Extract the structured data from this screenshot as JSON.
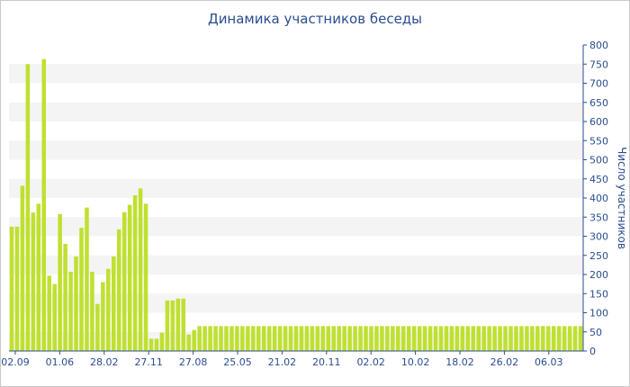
{
  "chart_data": {
    "type": "bar",
    "title": "Динамика участников беседы",
    "ylabel": "Число участников",
    "xlabel": "",
    "ylim": [
      0,
      800
    ],
    "y_ticks": [
      0,
      50,
      100,
      150,
      200,
      250,
      300,
      350,
      400,
      450,
      500,
      550,
      600,
      650,
      700,
      750,
      800
    ],
    "x_tick_labels": [
      "02.09",
      "01.06",
      "28.02",
      "27.11",
      "27.08",
      "25.05",
      "21.02",
      "20.11",
      "02.02",
      "10.02",
      "18.02",
      "26.02",
      "06.03"
    ],
    "grid": true,
    "y_axis_side": "right",
    "bar_color": "#bfe030",
    "band_color": "#f4f4f4",
    "values": [
      325,
      325,
      432,
      750,
      362,
      385,
      763,
      197,
      175,
      358,
      280,
      207,
      247,
      322,
      375,
      207,
      123,
      180,
      215,
      247,
      318,
      363,
      382,
      407,
      425,
      385,
      32,
      32,
      48,
      132,
      132,
      137,
      137,
      43,
      55,
      65,
      65,
      65,
      65,
      65,
      65,
      65,
      65,
      65,
      65,
      65,
      65,
      65,
      65,
      65,
      65,
      65,
      65,
      65,
      65,
      65,
      65,
      65,
      65,
      65,
      65,
      65,
      65,
      65,
      65,
      65,
      65,
      65,
      65,
      65,
      65,
      65,
      65,
      65,
      65,
      65,
      65,
      65,
      65,
      65,
      65,
      65,
      65,
      65,
      65,
      65,
      65,
      65,
      65,
      65,
      65,
      65,
      65,
      65,
      65,
      65,
      65,
      65,
      65,
      65,
      65,
      65,
      65,
      65,
      65,
      65,
      65
    ]
  }
}
